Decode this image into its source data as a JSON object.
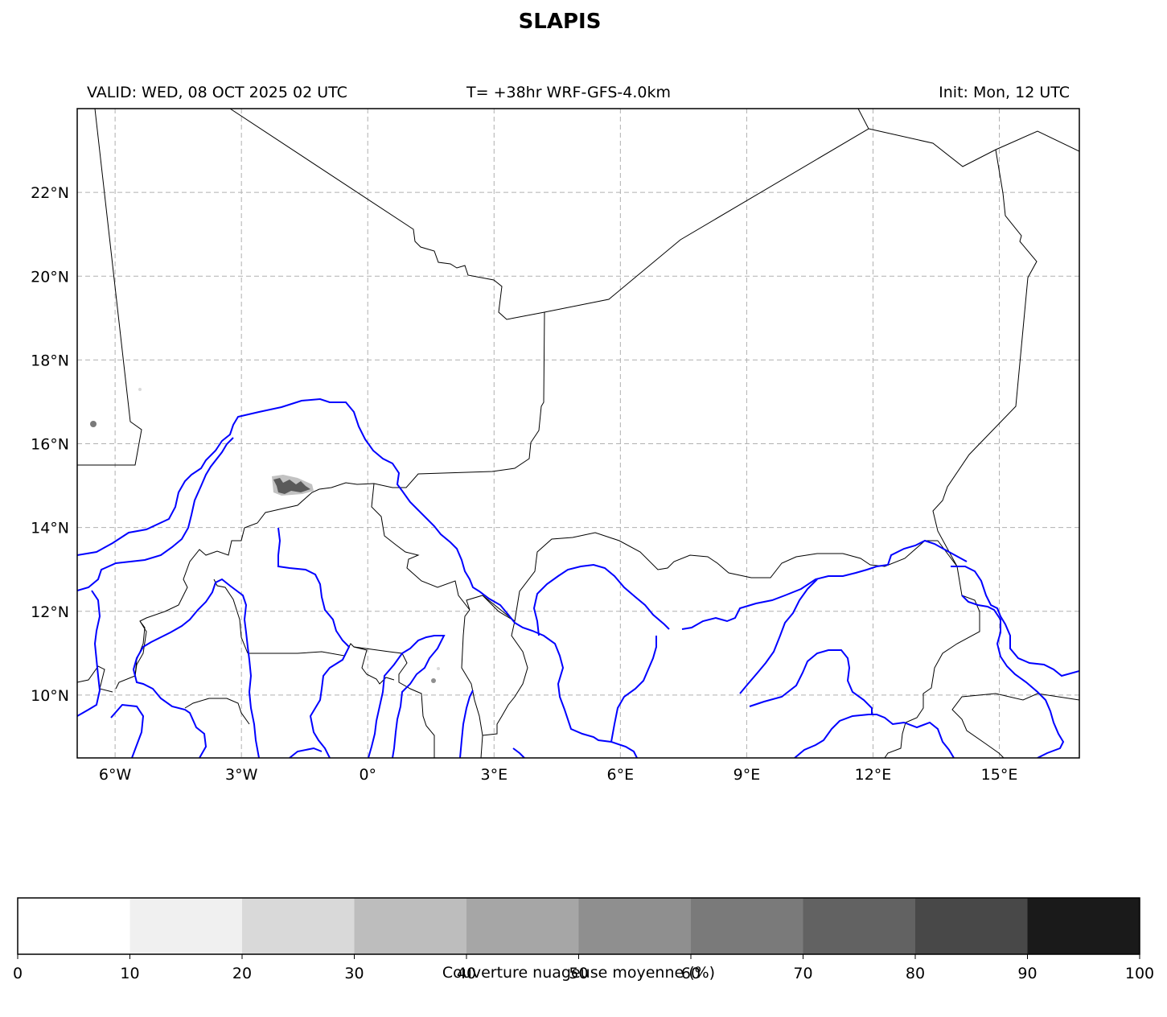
{
  "title": "SLAPIS",
  "header": {
    "valid": "VALID: WED, 08 OCT 2025 02 UTC",
    "run": "T= +38hr WRF-GFS-4.0km",
    "init": "Init: Mon, 12 UTC"
  },
  "map": {
    "lon_range": [
      -6.9,
      16.9
    ],
    "lat_range": [
      8.5,
      24.0
    ],
    "lon_ticks": [
      {
        "value": -6,
        "label": "6°W"
      },
      {
        "value": -3,
        "label": "3°W"
      },
      {
        "value": 0,
        "label": "0°"
      },
      {
        "value": 3,
        "label": "3°E"
      },
      {
        "value": 6,
        "label": "6°E"
      },
      {
        "value": 9,
        "label": "9°E"
      },
      {
        "value": 12,
        "label": "12°E"
      },
      {
        "value": 15,
        "label": "15°E"
      }
    ],
    "lat_ticks": [
      {
        "value": 10,
        "label": "10°N"
      },
      {
        "value": 12,
        "label": "12°N"
      },
      {
        "value": 14,
        "label": "14°N"
      },
      {
        "value": 16,
        "label": "16°N"
      },
      {
        "value": 18,
        "label": "18°N"
      },
      {
        "value": 20,
        "label": "20°N"
      },
      {
        "value": 22,
        "label": "22°N"
      }
    ],
    "grid": true,
    "border_color": "#000000",
    "river_color": "#0000ff",
    "grid_color": "#b0b0b0"
  },
  "colorbar": {
    "label": "Couverture nuageuse moyenne (%)",
    "ticks": [
      "0",
      "10",
      "20",
      "30",
      "40",
      "50",
      "60",
      "70",
      "80",
      "90",
      "100"
    ],
    "colors": [
      "#ffffff",
      "#f0f0f0",
      "#d9d9d9",
      "#bdbdbd",
      "#a6a6a6",
      "#8f8f8f",
      "#7a7a7a",
      "#626262",
      "#484848",
      "#1a1a1a"
    ]
  }
}
